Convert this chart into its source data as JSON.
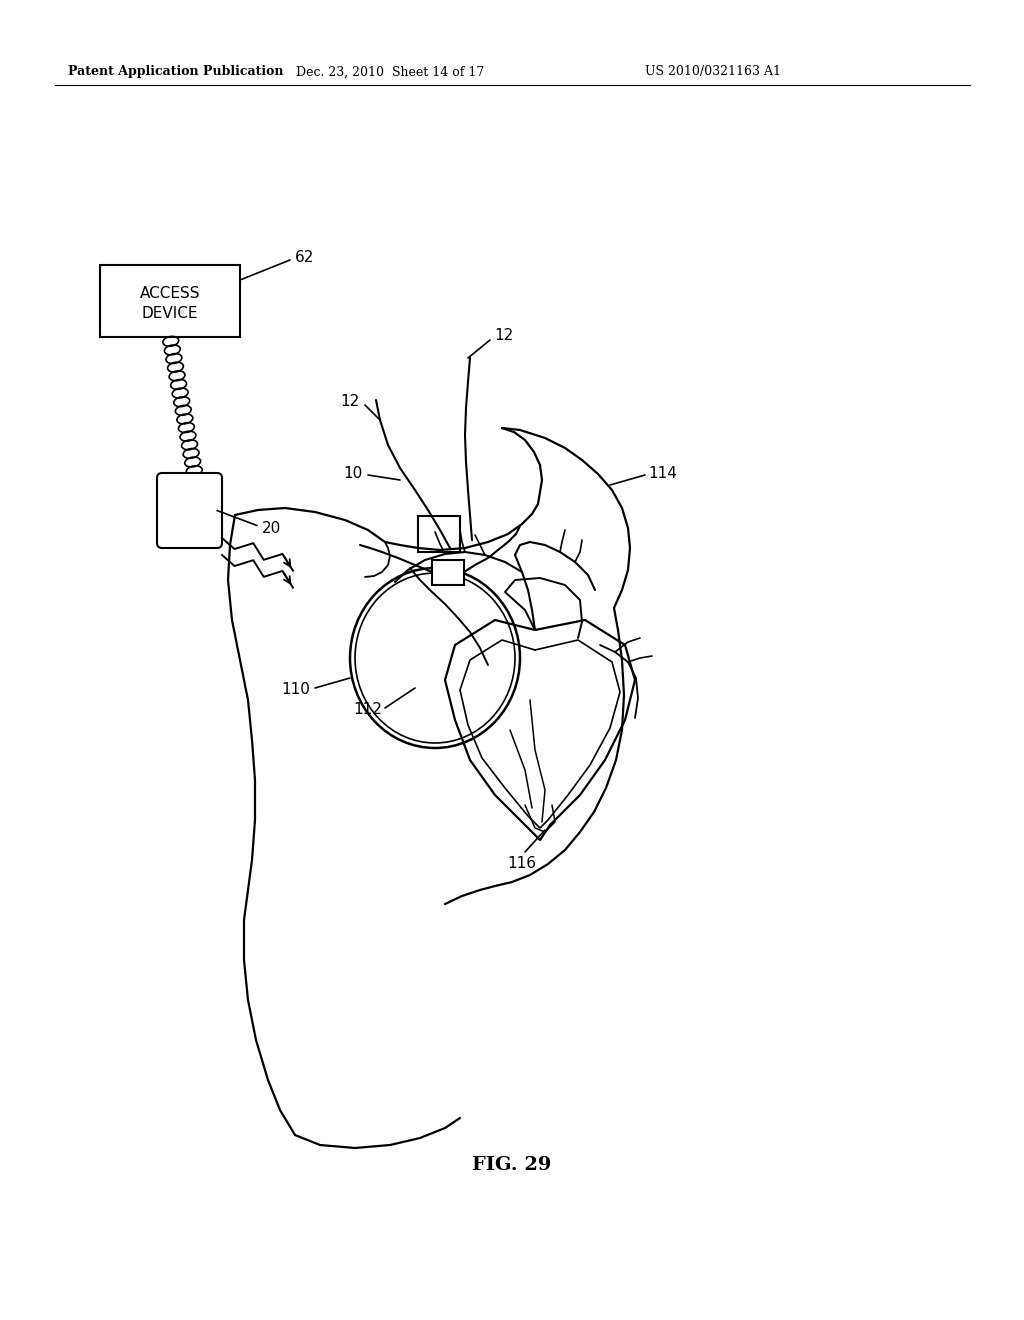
{
  "title": "FIG. 29",
  "header_left": "Patent Application Publication",
  "header_center": "Dec. 23, 2010  Sheet 14 of 17",
  "header_right": "US 2010/0321163 A1",
  "background_color": "#ffffff",
  "line_color": "#000000",
  "fig_width": 10.24,
  "fig_height": 13.2,
  "dpi": 100
}
